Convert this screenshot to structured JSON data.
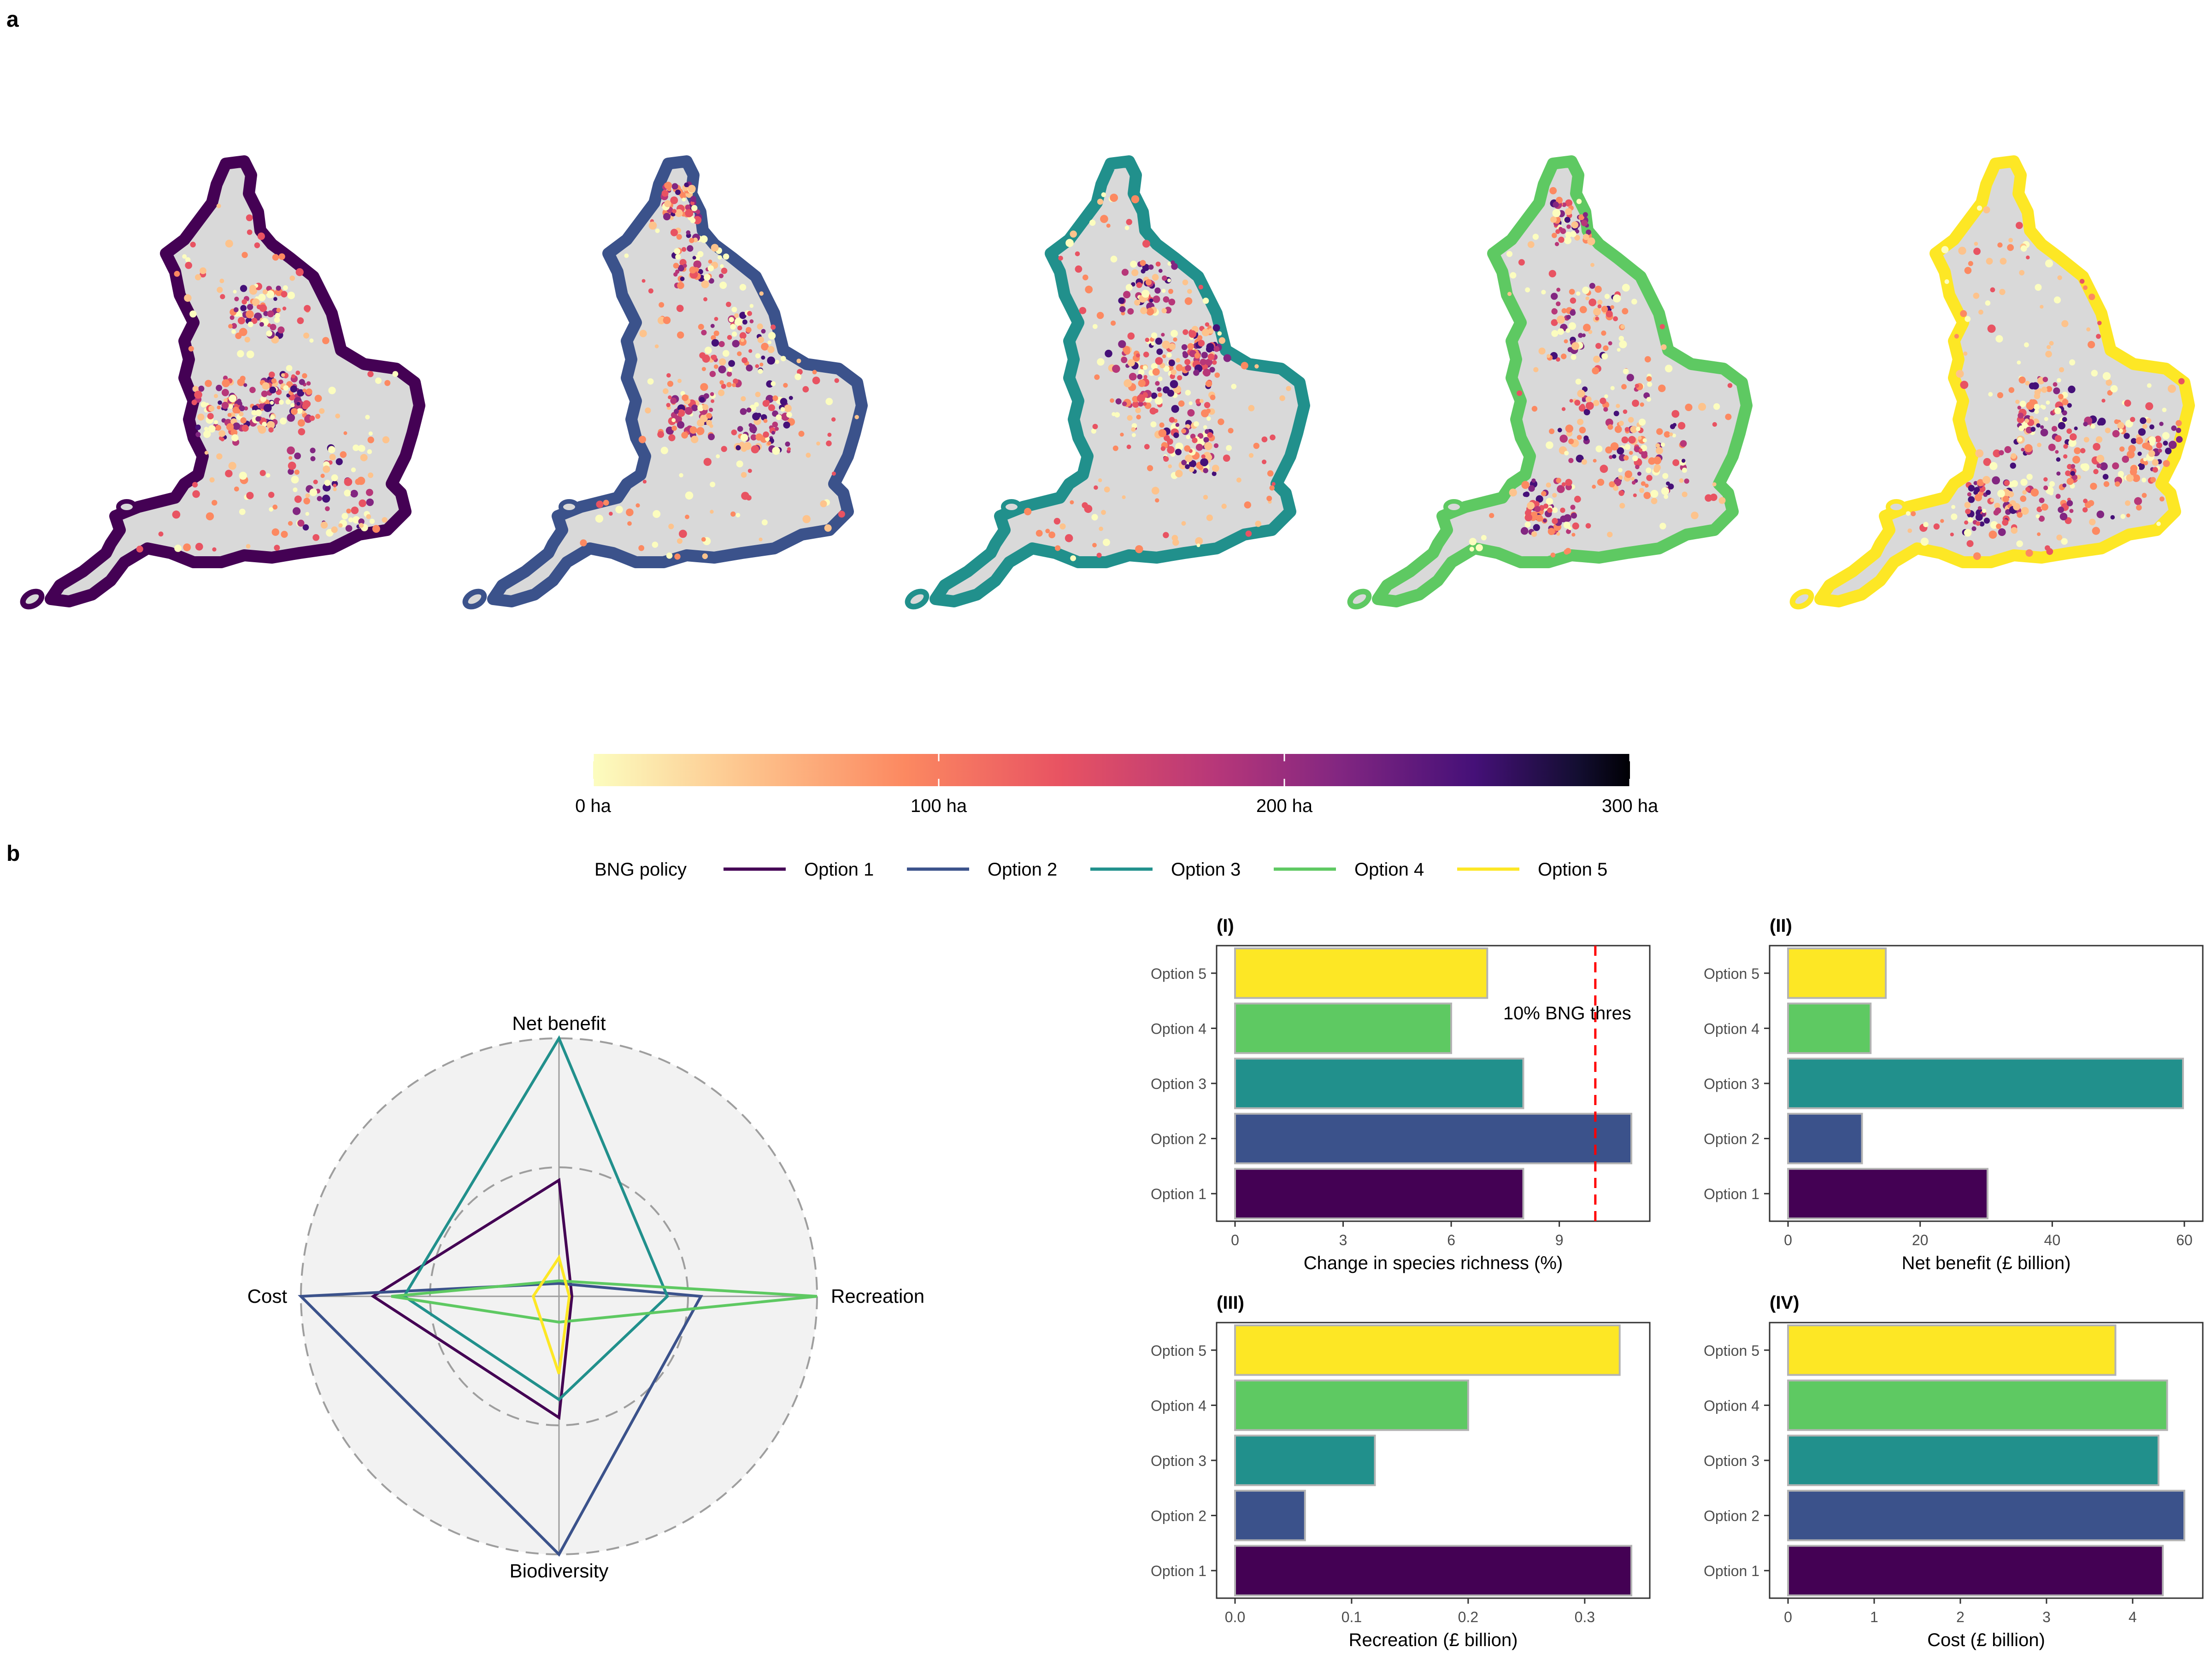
{
  "panel_labels": {
    "a": "a",
    "b": "b"
  },
  "colors": {
    "option_1": "#440154",
    "option_2": "#3b528b",
    "option_3": "#21908c",
    "option_4": "#5ec962",
    "option_5": "#fde725",
    "land": "#d9d9d9",
    "threshold_line": "#ff0000"
  },
  "maps": [
    {
      "option": "Option 1",
      "hotspot": "south-east and London"
    },
    {
      "option": "Option 2",
      "hotspot": "north and midlands"
    },
    {
      "option": "Option 3",
      "hotspot": "midlands and uplands"
    },
    {
      "option": "Option 4",
      "hotspot": "scattered nationwide"
    },
    {
      "option": "Option 5",
      "hotspot": "south and south-east"
    }
  ],
  "colorbar": {
    "scale": "magma-reversed",
    "min": 0,
    "max": 300,
    "ticks": [
      {
        "value": 0,
        "label": "0 ha"
      },
      {
        "value": 100,
        "label": "100 ha"
      },
      {
        "value": 200,
        "label": "200 ha"
      },
      {
        "value": 300,
        "label": "300 ha"
      }
    ]
  },
  "legend": {
    "title": "BNG policy",
    "items": [
      "Option 1",
      "Option 2",
      "Option 3",
      "Option 4",
      "Option 5"
    ]
  },
  "chart_data": [
    {
      "type": "radar",
      "axes": [
        "Net benefit",
        "Recreation",
        "Biodiversity",
        "Cost"
      ],
      "rings": [
        0.5,
        1.0
      ],
      "series": [
        {
          "name": "Option 1",
          "values": [
            0.45,
            0.05,
            0.47,
            0.72
          ]
        },
        {
          "name": "Option 2",
          "values": [
            0.05,
            0.55,
            1.0,
            1.0
          ]
        },
        {
          "name": "Option 3",
          "values": [
            1.0,
            0.42,
            0.4,
            0.6
          ]
        },
        {
          "name": "Option 4",
          "values": [
            0.06,
            1.0,
            0.1,
            0.65
          ]
        },
        {
          "name": "Option 5",
          "values": [
            0.15,
            0.04,
            0.3,
            0.1
          ]
        }
      ]
    },
    {
      "type": "bar",
      "orientation": "horizontal",
      "panel": "(I)",
      "categories": [
        "Option 1",
        "Option 2",
        "Option 3",
        "Option 4",
        "Option 5"
      ],
      "values": [
        8.0,
        11.0,
        8.0,
        6.0,
        7.0
      ],
      "xlabel": "Change in species richness (%)",
      "xlim": [
        0,
        11
      ],
      "xticks": [
        0,
        3,
        6,
        9
      ],
      "threshold": {
        "value": 10,
        "label": "10% BNG thres"
      }
    },
    {
      "type": "bar",
      "orientation": "horizontal",
      "panel": "(II)",
      "categories": [
        "Option 1",
        "Option 2",
        "Option 3",
        "Option 4",
        "Option 5"
      ],
      "values": [
        30.2,
        11.2,
        59.8,
        12.5,
        14.8
      ],
      "xlabel": "Net benefit (£ billion)",
      "xlim": [
        0,
        60
      ],
      "xticks": [
        0,
        20,
        40,
        60
      ]
    },
    {
      "type": "bar",
      "orientation": "horizontal",
      "panel": "(III)",
      "categories": [
        "Option 1",
        "Option 2",
        "Option 3",
        "Option 4",
        "Option 5"
      ],
      "values": [
        0.34,
        0.06,
        0.12,
        0.2,
        0.33
      ],
      "xlabel": "Recreation (£ billion)",
      "xlim": [
        0,
        0.34
      ],
      "xticks": [
        0.0,
        0.1,
        0.2,
        0.3
      ],
      "xtick_labels": [
        "0.0",
        "0.1",
        "0.2",
        "0.3"
      ]
    },
    {
      "type": "bar",
      "orientation": "horizontal",
      "panel": "(IV)",
      "categories": [
        "Option 1",
        "Option 2",
        "Option 3",
        "Option 4",
        "Option 5"
      ],
      "values": [
        4.35,
        4.6,
        4.3,
        4.4,
        3.8
      ],
      "xlabel": "Cost (£ billion)",
      "xlim": [
        0,
        4.6
      ],
      "xticks": [
        0,
        1,
        2,
        3,
        4
      ]
    }
  ]
}
